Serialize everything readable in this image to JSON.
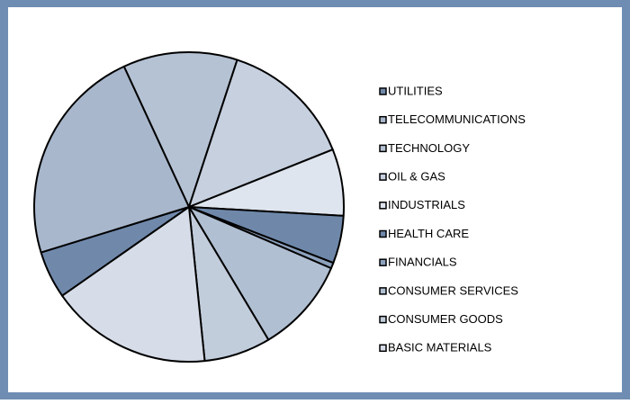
{
  "chart_data": {
    "type": "pie",
    "categories": [
      "UTILITIES",
      "TELECOMMUNICATIONS",
      "TECHNOLOGY",
      "OIL & GAS",
      "INDUSTRIALS",
      "HEALTH CARE",
      "FINANCIALS",
      "CONSUMER SERVICES",
      "CONSUMER GOODS",
      "BASIC MATERIALS"
    ],
    "values": [
      5,
      23,
      12,
      14,
      7,
      5,
      0.6,
      10,
      7,
      17
    ],
    "colors": [
      "#7089ab",
      "#a8b7cc",
      "#b5c2d4",
      "#c6d0df",
      "#dfe5ee",
      "#6f88aa",
      "#8da1bc",
      "#b1bfd2",
      "#c2cddc",
      "#d6dde8"
    ],
    "legend": "right"
  }
}
